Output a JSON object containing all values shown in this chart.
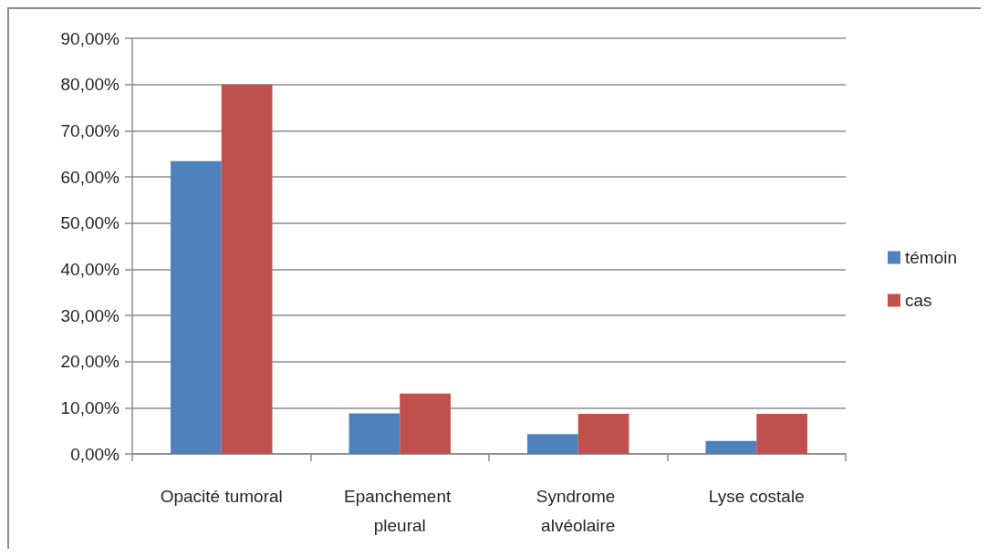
{
  "chart_data": {
    "type": "bar",
    "categories": [
      "Opacité tumoral",
      "Epanchement pleural",
      "Syndrome alvéolaire",
      "Lyse costale"
    ],
    "series": [
      {
        "name": "témoin",
        "color": "#4f81bd",
        "values": [
          63.4,
          8.8,
          4.3,
          2.8
        ]
      },
      {
        "name": "cas",
        "color": "#c0504d",
        "values": [
          80,
          13.1,
          8.7,
          8.7
        ]
      }
    ],
    "ylim": [
      0,
      90
    ],
    "yticks": [
      {
        "value": 0,
        "label": "0,00%"
      },
      {
        "value": 10,
        "label": "10,00%"
      },
      {
        "value": 20,
        "label": "20,00%"
      },
      {
        "value": 30,
        "label": "30,00%"
      },
      {
        "value": 40,
        "label": "40,00%"
      },
      {
        "value": 50,
        "label": "50,00%"
      },
      {
        "value": 60,
        "label": "60,00%"
      },
      {
        "value": 70,
        "label": "70,00%"
      },
      {
        "value": 80,
        "label": "80,00%"
      },
      {
        "value": 90,
        "label": "90,00%"
      }
    ],
    "grid": "y",
    "legend": "right"
  }
}
